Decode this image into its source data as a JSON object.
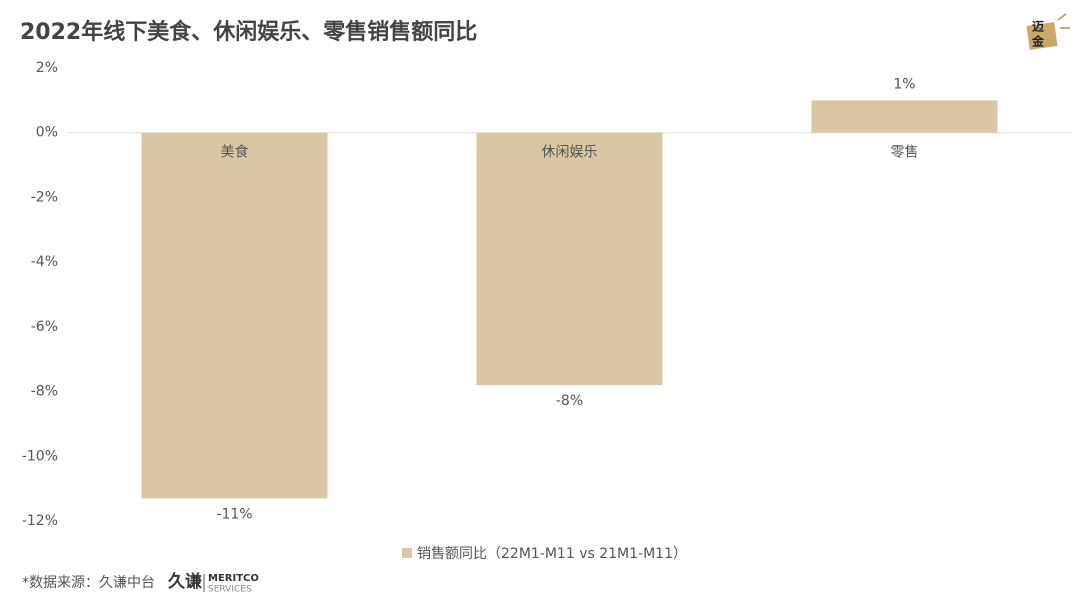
{
  "chart_data": {
    "type": "bar",
    "title": "2022年线下美食、休闲娱乐、零售销售额同比",
    "categories": [
      "美食",
      "休闲娱乐",
      "零售"
    ],
    "series": [
      {
        "name": "销售额同比（22M1-M11 vs 21M1-M11）",
        "color": "#d9c7a3",
        "values": [
          -11.3,
          -7.8,
          1.0
        ],
        "value_labels": [
          "-11%",
          "-8%",
          "1%"
        ]
      }
    ],
    "ylim": [
      -12,
      2
    ],
    "yticks": [
      {
        "value": 2,
        "label": "2%"
      },
      {
        "value": 0,
        "label": "0%"
      },
      {
        "value": -2,
        "label": "-2%"
      },
      {
        "value": -4,
        "label": "-4%"
      },
      {
        "value": -6,
        "label": "-6%"
      },
      {
        "value": -8,
        "label": "-8%"
      },
      {
        "value": -10,
        "label": "-10%"
      },
      {
        "value": -12,
        "label": "-12%"
      }
    ],
    "grid": false,
    "legend": "bottom"
  },
  "source": "*数据来源：久谦中台",
  "source_logo": {
    "name": "久谦",
    "brand": "MERITCO",
    "sub": "SERVICES"
  },
  "corner_logo": {
    "top": "迈",
    "bottom": "金"
  }
}
